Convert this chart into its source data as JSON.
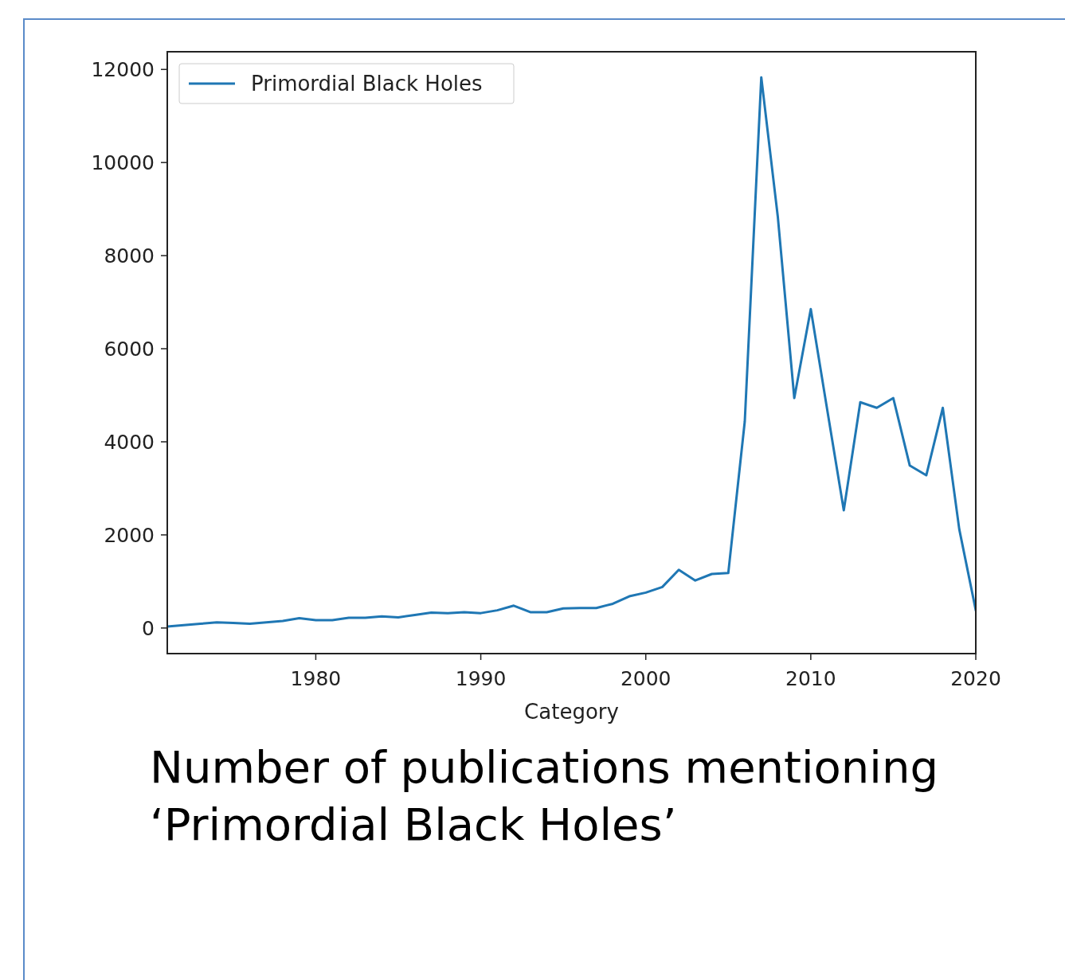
{
  "chart_data": {
    "type": "line",
    "title": "Number of publications mentioning ‘Primordial Black Holes’",
    "xlabel": "Category",
    "x": [
      1971,
      1972,
      1973,
      1974,
      1975,
      1976,
      1977,
      1978,
      1979,
      1980,
      1981,
      1982,
      1983,
      1984,
      1985,
      1986,
      1987,
      1988,
      1989,
      1990,
      1991,
      1992,
      1993,
      1994,
      1995,
      1996,
      1997,
      1998,
      1999,
      2000,
      2001,
      2002,
      2003,
      2004,
      2005,
      2006,
      2007,
      2008,
      2009,
      2010,
      2011,
      2012,
      2013,
      2014,
      2015,
      2016,
      2017,
      2018,
      2019,
      2020
    ],
    "series": [
      {
        "name": "Primordial Black Holes",
        "color": "#1f77b4",
        "values": [
          30,
          60,
          90,
          120,
          110,
          90,
          120,
          150,
          210,
          170,
          170,
          220,
          220,
          250,
          230,
          280,
          330,
          320,
          340,
          320,
          380,
          480,
          340,
          340,
          420,
          430,
          430,
          520,
          680,
          760,
          880,
          1250,
          1020,
          1160,
          1180,
          4440,
          11830,
          8840,
          4940,
          6850,
          4680,
          2530,
          4850,
          4730,
          4940,
          3490,
          3280,
          4730,
          2120,
          380
        ]
      }
    ],
    "xlim": [
      1971,
      2020
    ],
    "xticks": [
      1980,
      1990,
      2000,
      2010,
      2020
    ],
    "ylim": [
      -550,
      12380
    ],
    "yticks": [
      0,
      2000,
      4000,
      6000,
      8000,
      10000,
      12000
    ],
    "legend": "top left",
    "grid": false,
    "marker": "none",
    "line_style": "solid"
  }
}
